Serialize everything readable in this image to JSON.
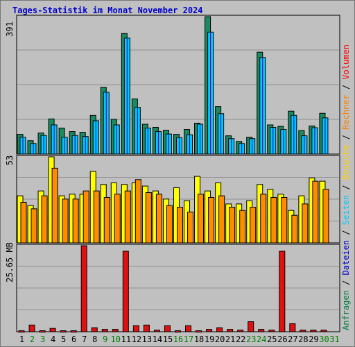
{
  "title": "Tages-Statistik im Monat November 2024",
  "panel_max_labels": {
    "top": "391",
    "middle": "53",
    "bottom": "25.65 MB"
  },
  "legend_right": {
    "top": [
      {
        "text": "Anfragen",
        "color": "#008040"
      },
      {
        "text": " / ",
        "color": "#000000"
      },
      {
        "text": "Dateien",
        "color": "#0000cc"
      },
      {
        "text": " / ",
        "color": "#000000"
      },
      {
        "text": "Seiten",
        "color": "#00c8ff"
      },
      {
        "text": " / ",
        "color": "#000000"
      },
      {
        "text": "Besuche",
        "color": "#ffd000"
      },
      {
        "text": " / ",
        "color": "#000000"
      },
      {
        "text": "Rechner",
        "color": "#ff8000"
      },
      {
        "text": " / ",
        "color": "#000000"
      },
      {
        "text": "Volumen",
        "color": "#ff0000"
      }
    ]
  },
  "colors": {
    "anfragen": "#1a8a60",
    "dateien": "#00c8ff",
    "besuche": "#ffff00",
    "rechner": "#ff8c00",
    "volumen": "#e01010",
    "weekday": "#000000",
    "weekend": "#008000",
    "plot_bg": "#c0c0c0",
    "grid": "#909090"
  },
  "chart_data": {
    "type": "bar",
    "categories": [
      "1",
      "2",
      "3",
      "4",
      "5",
      "6",
      "7",
      "8",
      "9",
      "10",
      "11",
      "12",
      "13",
      "14",
      "15",
      "16",
      "17",
      "18",
      "19",
      "20",
      "21",
      "22",
      "23",
      "24",
      "25",
      "26",
      "27",
      "28",
      "29",
      "30",
      "31"
    ],
    "weekend_days": [
      2,
      3,
      9,
      10,
      16,
      17,
      23,
      24,
      30,
      31
    ],
    "panels": [
      {
        "name": "Anfragen/Dateien",
        "ymax": 391,
        "series": [
          {
            "name": "Anfragen",
            "values": [
              56,
              38,
              60,
              100,
              74,
              64,
              62,
              110,
              190,
              99,
              343,
              157,
              85,
              76,
              68,
              56,
              70,
              88,
              391,
              135,
              52,
              36,
              48,
              290,
              83,
              79,
              122,
              67,
              80,
              116,
              0
            ]
          },
          {
            "name": "Dateien",
            "values": [
              48,
              30,
              53,
              83,
              48,
              53,
              50,
              95,
              176,
              83,
              330,
              133,
              74,
              64,
              57,
              47,
              55,
              85,
              347,
              115,
              44,
              30,
              44,
              275,
              76,
              70,
              110,
              52,
              75,
              103,
              0
            ]
          },
          {
            "name": "Seiten",
            "values": [
              46,
              28,
              51,
              81,
              46,
              51,
              48,
              93,
              174,
              81,
              328,
              131,
              72,
              62,
              55,
              45,
              53,
              83,
              345,
              113,
              42,
              28,
              42,
              273,
              74,
              68,
              108,
              50,
              73,
              101,
              0
            ]
          }
        ]
      },
      {
        "name": "Besuche/Rechner",
        "ymax": 53,
        "series": [
          {
            "name": "Besuche",
            "values": [
              29,
              23,
              32,
              53,
              29,
              30,
              30,
              44,
              36,
              37,
              36,
              37,
              35,
              32,
              27,
              34,
              26,
              41,
              32,
              37,
              24,
              24,
              26,
              36,
              33,
              30,
              20,
              29,
              40,
              38,
              0
            ]
          },
          {
            "name": "Rechner",
            "values": [
              25,
              21,
              29,
              46,
              27,
              27,
              32,
              32,
              28,
              30,
              32,
              39,
              31,
              30,
              23,
              22,
              19,
              30,
              28,
              29,
              22,
              20,
              22,
              30,
              28,
              28,
              17,
              24,
              38,
              33,
              0
            ]
          }
        ]
      },
      {
        "name": "Volumen",
        "ymax": 25.65,
        "series": [
          {
            "name": "Volumen",
            "values": [
              0.3,
              2.0,
              0.3,
              1.0,
              0.3,
              0.3,
              25.65,
              1.2,
              0.7,
              0.7,
              24.0,
              1.8,
              2.0,
              0.5,
              1.8,
              0.3,
              1.8,
              0.3,
              0.7,
              1.2,
              0.7,
              0.5,
              3.0,
              0.7,
              0.5,
              24.0,
              2.4,
              0.5,
              0.5,
              0.5,
              0.0
            ]
          }
        ]
      }
    ]
  }
}
